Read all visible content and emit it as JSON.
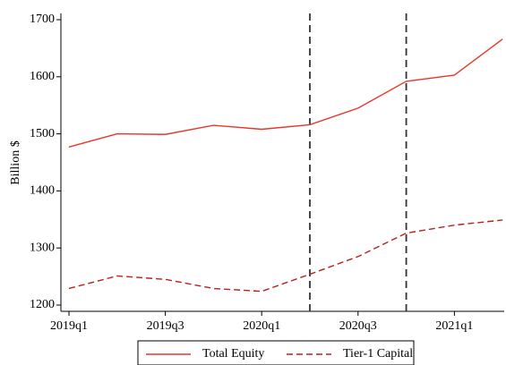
{
  "chart_data": {
    "type": "line",
    "y_label": "Billion $",
    "categories": [
      "2019q1",
      null,
      "2019q3",
      null,
      "2020q1",
      null,
      "2020q3",
      null,
      "2021q1",
      null
    ],
    "series": [
      {
        "name": "Total Equity",
        "color": "#e8372a",
        "dash": "solid",
        "values": [
          1477,
          1500,
          1499,
          1515,
          1508,
          1516,
          1545,
          1592,
          1603,
          1666
        ]
      },
      {
        "name": "Tier-1 Capital",
        "color": "#b8211b",
        "dash": "dashed",
        "values": [
          1229,
          1251,
          1245,
          1229,
          1224,
          1254,
          1285,
          1326,
          1340,
          1349
        ]
      }
    ],
    "vlines_at_category": [
      5,
      7
    ],
    "ylim": [
      1189,
      1711
    ],
    "yticks": [
      1200,
      1300,
      1400,
      1500,
      1600,
      1700
    ],
    "grid": false
  }
}
